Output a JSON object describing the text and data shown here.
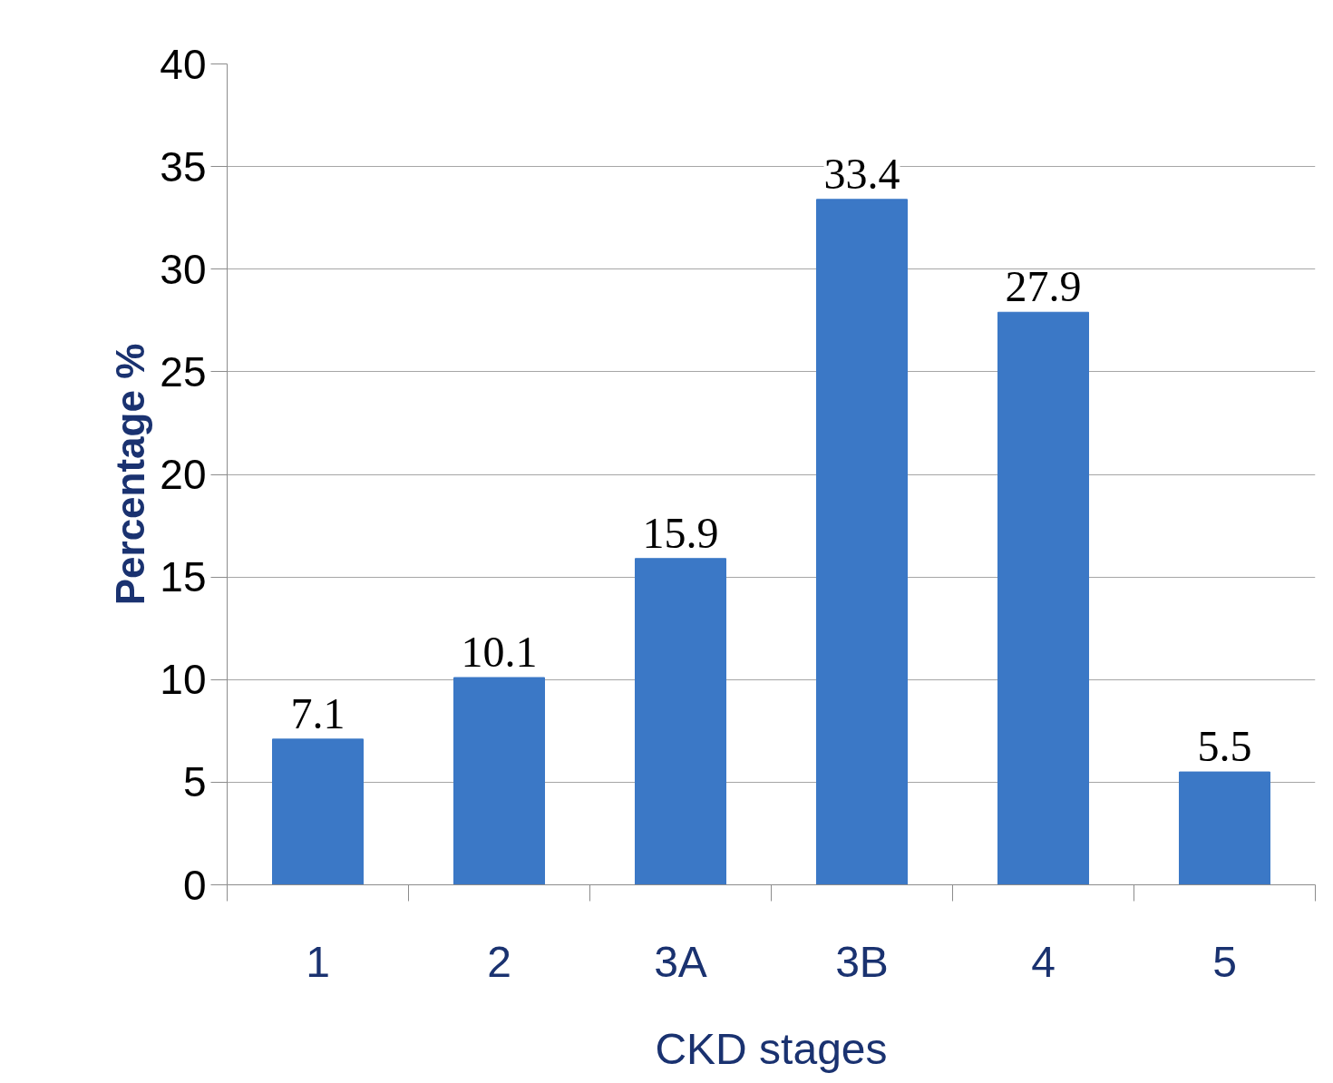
{
  "chart_data": {
    "type": "bar",
    "categories": [
      "1",
      "2",
      "3A",
      "3B",
      "4",
      "5"
    ],
    "values": [
      7.1,
      10.1,
      15.9,
      33.4,
      27.9,
      5.5
    ],
    "color": "#3b78c6",
    "xlabel": "CKD stages",
    "ylabel": "Percentage %",
    "ylim": [
      0,
      40
    ],
    "yticks": [
      0,
      5,
      10,
      15,
      20,
      25,
      30,
      35,
      40
    ],
    "grid": "y",
    "data_labels": true
  }
}
